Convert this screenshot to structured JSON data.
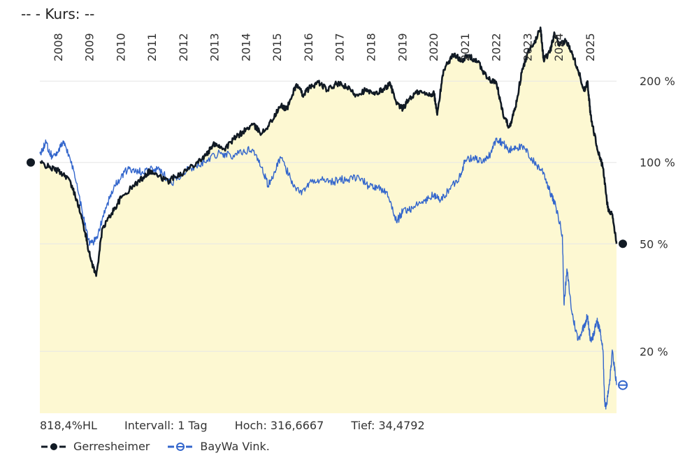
{
  "header": {
    "text": "--  - Kurs: --"
  },
  "footer": {
    "hl": "818,4%HL",
    "interval": "Intervall: 1 Tag",
    "high": "Hoch: 316,6667",
    "low": "Tief: 34,4792"
  },
  "legend": [
    {
      "label": "Gerresheimer",
      "color": "#111a24"
    },
    {
      "label": "BayWa Vink.",
      "color": "#3366cc"
    }
  ],
  "chart_data": {
    "type": "line",
    "y_scale": "log",
    "y_ticks": [
      {
        "value": 200,
        "label": "200 %"
      },
      {
        "value": 100,
        "label": "100 %"
      },
      {
        "value": 50,
        "label": "50 %"
      },
      {
        "value": 20,
        "label": "20 %"
      }
    ],
    "x_ticks": [
      "2008",
      "2009",
      "2010",
      "2011",
      "2012",
      "2013",
      "2014",
      "2015",
      "2016",
      "2017",
      "2018",
      "2019",
      "2020",
      "2021",
      "2022",
      "2023",
      "2024",
      "2025"
    ],
    "x_range": [
      2007.4,
      2025.83
    ],
    "y_range": [
      11.8,
      330
    ],
    "fill_color": "#fdf8d2",
    "series": [
      {
        "name": "Gerresheimer",
        "color": "#111a24",
        "points": [
          [
            2007.4,
            100
          ],
          [
            2007.7,
            96
          ],
          [
            2008.0,
            93
          ],
          [
            2008.3,
            88
          ],
          [
            2008.6,
            72
          ],
          [
            2008.85,
            55
          ],
          [
            2009.0,
            45
          ],
          [
            2009.2,
            38
          ],
          [
            2009.4,
            57
          ],
          [
            2009.7,
            65
          ],
          [
            2010.0,
            74
          ],
          [
            2010.4,
            82
          ],
          [
            2010.7,
            88
          ],
          [
            2010.9,
            93
          ],
          [
            2011.2,
            89
          ],
          [
            2011.5,
            85
          ],
          [
            2011.7,
            89
          ],
          [
            2012.0,
            92
          ],
          [
            2012.4,
            100
          ],
          [
            2012.7,
            106
          ],
          [
            2013.0,
            118
          ],
          [
            2013.3,
            112
          ],
          [
            2013.6,
            122
          ],
          [
            2013.9,
            130
          ],
          [
            2014.2,
            138
          ],
          [
            2014.5,
            128
          ],
          [
            2014.8,
            142
          ],
          [
            2015.1,
            162
          ],
          [
            2015.3,
            158
          ],
          [
            2015.6,
            195
          ],
          [
            2015.8,
            178
          ],
          [
            2016.0,
            188
          ],
          [
            2016.3,
            198
          ],
          [
            2016.6,
            185
          ],
          [
            2016.9,
            196
          ],
          [
            2017.2,
            190
          ],
          [
            2017.5,
            178
          ],
          [
            2017.8,
            185
          ],
          [
            2018.1,
            178
          ],
          [
            2018.4,
            188
          ],
          [
            2018.6,
            195
          ],
          [
            2018.8,
            164
          ],
          [
            2019.0,
            158
          ],
          [
            2019.2,
            172
          ],
          [
            2019.5,
            183
          ],
          [
            2019.8,
            178
          ],
          [
            2020.0,
            180
          ],
          [
            2020.1,
            150
          ],
          [
            2020.3,
            220
          ],
          [
            2020.6,
            250
          ],
          [
            2020.9,
            240
          ],
          [
            2021.1,
            248
          ],
          [
            2021.4,
            235
          ],
          [
            2021.7,
            205
          ],
          [
            2022.0,
            195
          ],
          [
            2022.2,
            152
          ],
          [
            2022.4,
            135
          ],
          [
            2022.6,
            160
          ],
          [
            2022.8,
            215
          ],
          [
            2023.0,
            255
          ],
          [
            2023.2,
            275
          ],
          [
            2023.4,
            316
          ],
          [
            2023.5,
            240
          ],
          [
            2023.7,
            255
          ],
          [
            2023.85,
            300
          ],
          [
            2024.0,
            270
          ],
          [
            2024.2,
            282
          ],
          [
            2024.4,
            258
          ],
          [
            2024.6,
            220
          ],
          [
            2024.8,
            185
          ],
          [
            2024.9,
            200
          ],
          [
            2025.0,
            150
          ],
          [
            2025.2,
            115
          ],
          [
            2025.4,
            95
          ],
          [
            2025.55,
            68
          ],
          [
            2025.7,
            64
          ],
          [
            2025.83,
            50
          ]
        ]
      },
      {
        "name": "BayWa Vink.",
        "color": "#3366cc",
        "points": [
          [
            2007.4,
            108
          ],
          [
            2007.6,
            118
          ],
          [
            2007.8,
            104
          ],
          [
            2008.0,
            112
          ],
          [
            2008.2,
            118
          ],
          [
            2008.5,
            92
          ],
          [
            2008.8,
            62
          ],
          [
            2009.0,
            50
          ],
          [
            2009.2,
            52
          ],
          [
            2009.5,
            68
          ],
          [
            2009.8,
            82
          ],
          [
            2010.1,
            92
          ],
          [
            2010.4,
            95
          ],
          [
            2010.7,
            91
          ],
          [
            2011.0,
            95
          ],
          [
            2011.3,
            92
          ],
          [
            2011.6,
            84
          ],
          [
            2012.0,
            92
          ],
          [
            2012.4,
            97
          ],
          [
            2012.8,
            104
          ],
          [
            2013.2,
            109
          ],
          [
            2013.5,
            105
          ],
          [
            2013.9,
            110
          ],
          [
            2014.2,
            112
          ],
          [
            2014.5,
            96
          ],
          [
            2014.7,
            82
          ],
          [
            2014.9,
            92
          ],
          [
            2015.1,
            104
          ],
          [
            2015.4,
            88
          ],
          [
            2015.7,
            77
          ],
          [
            2016.0,
            84
          ],
          [
            2016.4,
            86
          ],
          [
            2016.8,
            85
          ],
          [
            2017.2,
            87
          ],
          [
            2017.6,
            88
          ],
          [
            2017.9,
            82
          ],
          [
            2018.2,
            80
          ],
          [
            2018.5,
            78
          ],
          [
            2018.8,
            60
          ],
          [
            2019.0,
            66
          ],
          [
            2019.3,
            68
          ],
          [
            2019.7,
            72
          ],
          [
            2020.0,
            76
          ],
          [
            2020.2,
            72
          ],
          [
            2020.5,
            80
          ],
          [
            2020.8,
            88
          ],
          [
            2021.0,
            102
          ],
          [
            2021.3,
            104
          ],
          [
            2021.6,
            100
          ],
          [
            2021.8,
            108
          ],
          [
            2022.0,
            123
          ],
          [
            2022.2,
            118
          ],
          [
            2022.4,
            110
          ],
          [
            2022.6,
            115
          ],
          [
            2022.9,
            112
          ],
          [
            2023.2,
            100
          ],
          [
            2023.5,
            92
          ],
          [
            2023.7,
            78
          ],
          [
            2023.9,
            68
          ],
          [
            2024.1,
            54
          ],
          [
            2024.15,
            30
          ],
          [
            2024.25,
            40
          ],
          [
            2024.4,
            28
          ],
          [
            2024.6,
            22
          ],
          [
            2024.8,
            25
          ],
          [
            2024.9,
            27
          ],
          [
            2025.0,
            22
          ],
          [
            2025.1,
            23
          ],
          [
            2025.2,
            26
          ],
          [
            2025.3,
            24
          ],
          [
            2025.4,
            20
          ],
          [
            2025.45,
            13
          ],
          [
            2025.5,
            12.5
          ],
          [
            2025.6,
            15
          ],
          [
            2025.7,
            20
          ],
          [
            2025.83,
            15
          ]
        ]
      }
    ],
    "markers": [
      {
        "series": "Gerresheimer",
        "x": 2007.4,
        "y": 100,
        "side": "left",
        "color": "#111a24"
      },
      {
        "series": "Gerresheimer",
        "x": 2025.83,
        "y": 50,
        "side": "right",
        "color": "#111a24"
      },
      {
        "series": "BayWa Vink.",
        "x": 2025.83,
        "y": 15,
        "side": "right",
        "color": "#3366cc"
      }
    ]
  }
}
